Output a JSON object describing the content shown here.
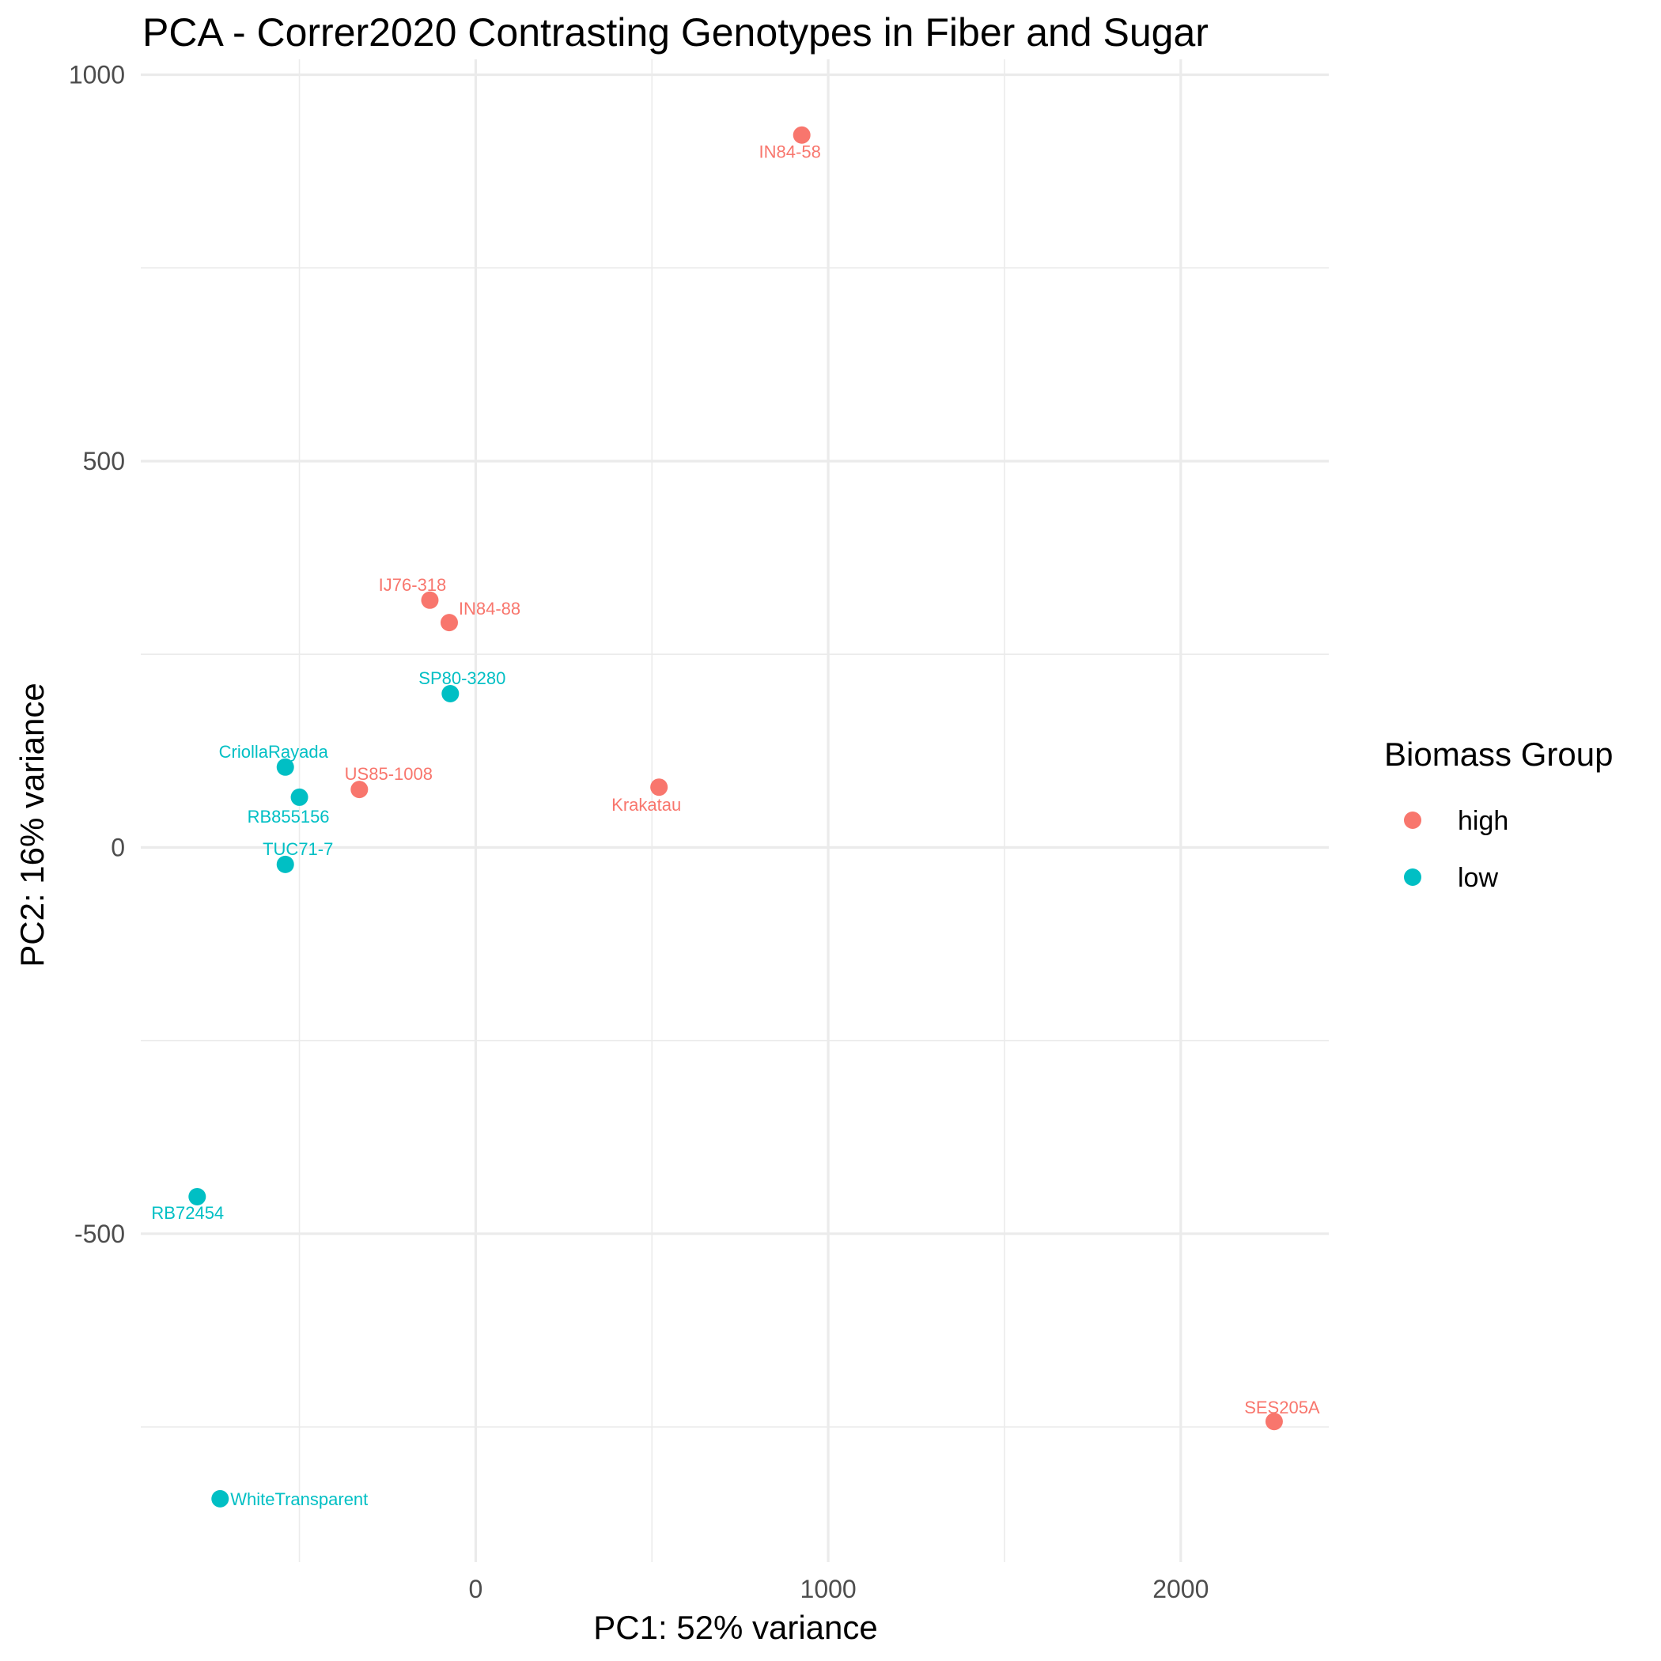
{
  "chart_data": {
    "type": "scatter",
    "title": "PCA - Correr2020 Contrasting Genotypes in Fiber and Sugar",
    "xlabel": "PC1: 52% variance",
    "ylabel": "PC2: 16% variance",
    "xlim": [
      -950,
      2420
    ],
    "ylim": [
      -925,
      1020
    ],
    "x_ticks": [
      0,
      1000,
      2000
    ],
    "x_tick_labels": [
      "0",
      "1000",
      "2000"
    ],
    "y_ticks": [
      -500,
      0,
      500,
      1000
    ],
    "y_tick_labels": [
      "-500",
      "0",
      "500",
      "1000"
    ],
    "grid": true,
    "legend": {
      "title": "Biomass Group",
      "position": "right",
      "entries": [
        {
          "name": "high",
          "color": "#F8766D"
        },
        {
          "name": "low",
          "color": "#00BFC4"
        }
      ]
    },
    "series": [
      {
        "name": "high",
        "color": "#F8766D",
        "points": [
          {
            "label": "IN84-58",
            "x": 925,
            "y": 922
          },
          {
            "label": "IJ76-318",
            "x": -130,
            "y": 320
          },
          {
            "label": "IN84-88",
            "x": -75,
            "y": 291
          },
          {
            "label": "US85-1008",
            "x": -330,
            "y": 75
          },
          {
            "label": "Krakatau",
            "x": 520,
            "y": 78
          },
          {
            "label": "SES205A",
            "x": 2265,
            "y": -743
          }
        ]
      },
      {
        "name": "low",
        "color": "#00BFC4",
        "points": [
          {
            "label": "SP80-3280",
            "x": -72,
            "y": 199
          },
          {
            "label": "CriollaRayada",
            "x": -540,
            "y": 104
          },
          {
            "label": "RB855156",
            "x": -500,
            "y": 65
          },
          {
            "label": "TUC71-7",
            "x": -540,
            "y": -22
          },
          {
            "label": "RB72454",
            "x": -790,
            "y": -452
          },
          {
            "label": "WhiteTransparent",
            "x": -725,
            "y": -843
          }
        ]
      }
    ]
  }
}
